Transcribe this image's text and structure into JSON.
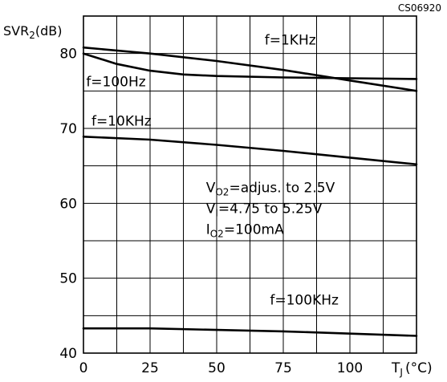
{
  "chart_data": {
    "type": "line",
    "figure_code": "CS06920",
    "ylabel": {
      "main": "SVR",
      "sub": "2",
      "unit": "(dB)"
    },
    "xlabel": {
      "main": "T",
      "sub": "J",
      "unit": "(°C)"
    },
    "xlim": [
      0,
      125
    ],
    "ylim": [
      40,
      85
    ],
    "x_ticks": [
      0,
      25,
      50,
      75,
      100
    ],
    "y_ticks": [
      40,
      50,
      60,
      70,
      80
    ],
    "x_grid": [
      0,
      12.5,
      25,
      37.5,
      50,
      62.5,
      75,
      87.5,
      100,
      112.5,
      125
    ],
    "y_grid": [
      40,
      45,
      50,
      55,
      60,
      65,
      70,
      75,
      80,
      85
    ],
    "grid": true,
    "colors": {
      "line": "#000000",
      "grid": "#000000",
      "background": "#ffffff"
    },
    "series": [
      {
        "name": "f=1KHz",
        "x": [
          0,
          25,
          50,
          75,
          100,
          125
        ],
        "y": [
          80.8,
          80.0,
          79.0,
          77.8,
          76.4,
          75.0
        ]
      },
      {
        "name": "f=100Hz",
        "x": [
          0,
          12.5,
          25,
          37.5,
          50,
          75,
          100,
          125
        ],
        "y": [
          80.0,
          78.6,
          77.7,
          77.2,
          77.0,
          76.8,
          76.7,
          76.6
        ]
      },
      {
        "name": "f=10KHz",
        "x": [
          0,
          25,
          50,
          75,
          100,
          125
        ],
        "y": [
          68.9,
          68.5,
          67.8,
          67.0,
          66.1,
          65.2
        ]
      },
      {
        "name": "f=100KHz",
        "x": [
          0,
          25,
          50,
          75,
          100,
          125
        ],
        "y": [
          43.3,
          43.3,
          43.1,
          42.9,
          42.6,
          42.3
        ]
      }
    ],
    "annotations": [
      {
        "text": "f=1KHz",
        "x": 68,
        "y": 81.2
      },
      {
        "text": "f=100Hz",
        "x": 1,
        "y": 75.6
      },
      {
        "text": "f=10KHz",
        "x": 3,
        "y": 70.4
      },
      {
        "text": "f=100KHz",
        "x": 70,
        "y": 46.5
      }
    ],
    "conditions": {
      "x": 46,
      "y": [
        61.5,
        58.7,
        55.9
      ],
      "lines": [
        {
          "main": "V",
          "sub": "O2",
          "rest": "=adjus. to 2.5V"
        },
        {
          "main": "V",
          "sub": "I",
          "rest": "=4.75 to 5.25V"
        },
        {
          "main": "I",
          "sub": "O2",
          "rest": "=100mA"
        }
      ]
    }
  }
}
